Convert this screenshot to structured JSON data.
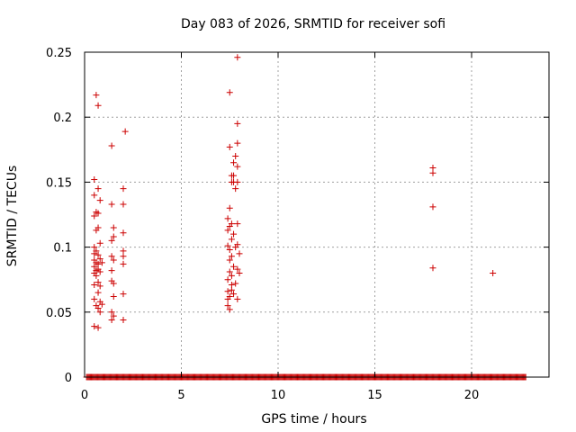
{
  "chart_data": {
    "type": "scatter",
    "title": "Day 083 of 2026, SRMTID for receiver sofi",
    "xlabel": "GPS time / hours",
    "ylabel": "SRMTID / TECUs",
    "xlim": [
      0,
      24
    ],
    "ylim": [
      0,
      0.25
    ],
    "xticks": [
      0,
      5,
      10,
      15,
      20
    ],
    "xtick_labels": [
      "0",
      "5",
      "10",
      "15",
      "20"
    ],
    "yticks": [
      0,
      0.05,
      0.1,
      0.15,
      0.2,
      0.25
    ],
    "ytick_labels": [
      "0",
      "0.05",
      "0.1",
      "0.15",
      "0.2",
      "0.25"
    ],
    "grid": true,
    "marker": "+",
    "color": "#cc0000",
    "zero_band": {
      "x_start": 0.1,
      "x_end": 22.8,
      "y": 0
    },
    "points": [
      [
        0.5,
        0.039
      ],
      [
        0.7,
        0.038
      ],
      [
        0.5,
        0.06
      ],
      [
        0.5,
        0.071
      ],
      [
        0.5,
        0.08
      ],
      [
        0.5,
        0.085
      ],
      [
        0.5,
        0.09
      ],
      [
        0.5,
        0.095
      ],
      [
        0.5,
        0.1
      ],
      [
        0.5,
        0.124
      ],
      [
        0.5,
        0.14
      ],
      [
        0.5,
        0.152
      ],
      [
        0.6,
        0.055
      ],
      [
        0.6,
        0.078
      ],
      [
        0.6,
        0.082
      ],
      [
        0.6,
        0.088
      ],
      [
        0.6,
        0.097
      ],
      [
        0.6,
        0.113
      ],
      [
        0.6,
        0.127
      ],
      [
        0.6,
        0.217
      ],
      [
        0.7,
        0.053
      ],
      [
        0.7,
        0.065
      ],
      [
        0.7,
        0.073
      ],
      [
        0.7,
        0.083
      ],
      [
        0.7,
        0.087
      ],
      [
        0.7,
        0.094
      ],
      [
        0.7,
        0.115
      ],
      [
        0.7,
        0.126
      ],
      [
        0.7,
        0.145
      ],
      [
        0.7,
        0.209
      ],
      [
        0.8,
        0.05
      ],
      [
        0.8,
        0.058
      ],
      [
        0.8,
        0.07
      ],
      [
        0.8,
        0.081
      ],
      [
        0.8,
        0.091
      ],
      [
        0.8,
        0.103
      ],
      [
        0.8,
        0.136
      ],
      [
        0.9,
        0.056
      ],
      [
        0.9,
        0.088
      ],
      [
        1.4,
        0.044
      ],
      [
        1.4,
        0.05
      ],
      [
        1.4,
        0.074
      ],
      [
        1.4,
        0.082
      ],
      [
        1.4,
        0.093
      ],
      [
        1.4,
        0.105
      ],
      [
        1.4,
        0.133
      ],
      [
        1.4,
        0.178
      ],
      [
        1.5,
        0.047
      ],
      [
        1.5,
        0.062
      ],
      [
        1.5,
        0.072
      ],
      [
        1.5,
        0.09
      ],
      [
        1.5,
        0.108
      ],
      [
        1.5,
        0.115
      ],
      [
        2.0,
        0.044
      ],
      [
        2.0,
        0.064
      ],
      [
        2.0,
        0.087
      ],
      [
        2.0,
        0.093
      ],
      [
        2.0,
        0.097
      ],
      [
        2.0,
        0.111
      ],
      [
        2.0,
        0.133
      ],
      [
        2.0,
        0.145
      ],
      [
        2.1,
        0.189
      ],
      [
        7.4,
        0.055
      ],
      [
        7.4,
        0.06
      ],
      [
        7.4,
        0.066
      ],
      [
        7.4,
        0.075
      ],
      [
        7.4,
        0.101
      ],
      [
        7.4,
        0.113
      ],
      [
        7.4,
        0.122
      ],
      [
        7.5,
        0.052
      ],
      [
        7.5,
        0.062
      ],
      [
        7.5,
        0.081
      ],
      [
        7.5,
        0.09
      ],
      [
        7.5,
        0.098
      ],
      [
        7.5,
        0.116
      ],
      [
        7.5,
        0.13
      ],
      [
        7.5,
        0.219
      ],
      [
        7.5,
        0.177
      ],
      [
        7.6,
        0.067
      ],
      [
        7.6,
        0.071
      ],
      [
        7.6,
        0.078
      ],
      [
        7.6,
        0.093
      ],
      [
        7.6,
        0.106
      ],
      [
        7.6,
        0.118
      ],
      [
        7.6,
        0.15
      ],
      [
        7.6,
        0.155
      ],
      [
        7.7,
        0.064
      ],
      [
        7.7,
        0.085
      ],
      [
        7.7,
        0.11
      ],
      [
        7.7,
        0.15
      ],
      [
        7.7,
        0.155
      ],
      [
        7.7,
        0.165
      ],
      [
        7.8,
        0.072
      ],
      [
        7.8,
        0.1
      ],
      [
        7.8,
        0.145
      ],
      [
        7.8,
        0.17
      ],
      [
        7.9,
        0.06
      ],
      [
        7.9,
        0.083
      ],
      [
        7.9,
        0.102
      ],
      [
        7.9,
        0.118
      ],
      [
        7.9,
        0.15
      ],
      [
        7.9,
        0.162
      ],
      [
        7.9,
        0.18
      ],
      [
        7.9,
        0.195
      ],
      [
        7.9,
        0.246
      ],
      [
        8.0,
        0.08
      ],
      [
        8.0,
        0.095
      ],
      [
        18.0,
        0.084
      ],
      [
        18.0,
        0.131
      ],
      [
        18.0,
        0.157
      ],
      [
        18.0,
        0.161
      ],
      [
        21.1,
        0.08
      ]
    ]
  }
}
